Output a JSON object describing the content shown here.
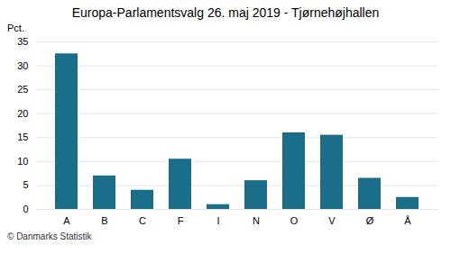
{
  "chart_data": {
    "type": "bar",
    "title": "Europa-Parlamentsvalg 26. maj 2019 - Tjørnehøjhallen",
    "ylabel": "Pct.",
    "caption": "© Danmarks Statistik",
    "categories": [
      "A",
      "B",
      "C",
      "F",
      "I",
      "N",
      "O",
      "V",
      "Ø",
      "Å"
    ],
    "values": [
      32.5,
      7.0,
      4.0,
      10.5,
      1.0,
      6.0,
      16.0,
      15.5,
      6.5,
      2.5
    ],
    "color": "#1a6e8a",
    "ylim": [
      0,
      35
    ],
    "yticks": [
      0,
      5,
      10,
      15,
      20,
      25,
      30,
      35
    ],
    "grid": true
  }
}
